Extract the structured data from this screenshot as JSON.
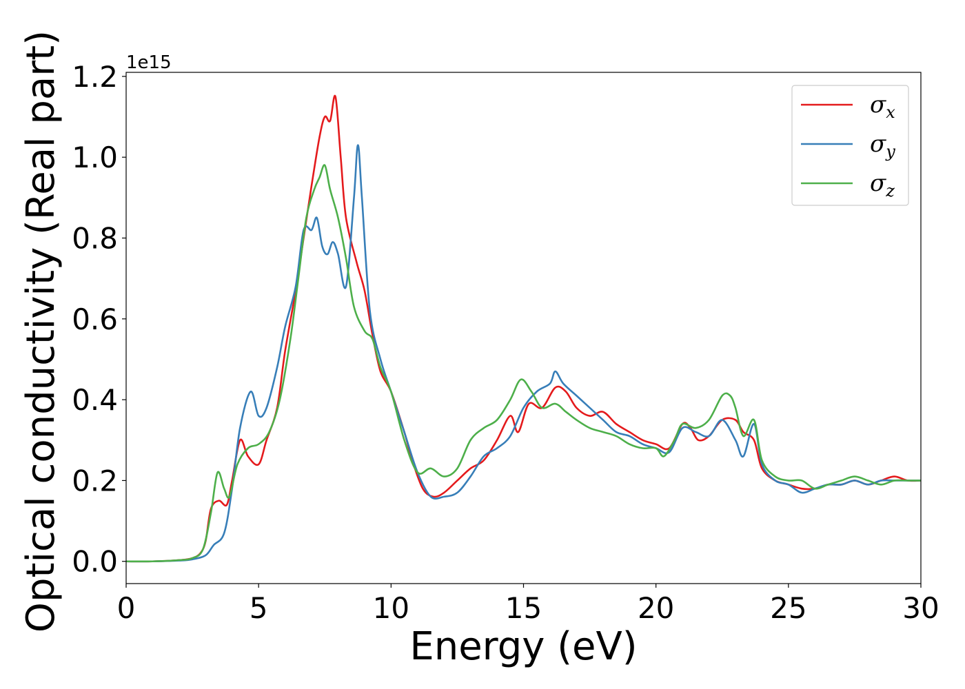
{
  "chart_data": {
    "type": "line",
    "title": "",
    "xlabel": "Energy (eV)",
    "ylabel": "Optical conductivity (Real part)",
    "y_offset_label": "1e15",
    "xlim": [
      0,
      30
    ],
    "ylim": [
      -0.055,
      1.21
    ],
    "x_ticks": [
      0,
      5,
      10,
      15,
      20,
      25,
      30
    ],
    "x_tick_labels": [
      "0",
      "5",
      "10",
      "15",
      "20",
      "25",
      "30"
    ],
    "y_ticks": [
      0.0,
      0.2,
      0.4,
      0.6,
      0.8,
      1.0,
      1.2
    ],
    "y_tick_labels": [
      "0.0",
      "0.2",
      "0.4",
      "0.6",
      "0.8",
      "1.0",
      "1.2"
    ],
    "grid": false,
    "legend_position": "top-right",
    "series": [
      {
        "name": "σx",
        "symbol": "σ",
        "subscript": "x",
        "color": "#e41a1c",
        "points": [
          [
            0,
            0.0
          ],
          [
            1,
            0.0
          ],
          [
            2,
            0.003
          ],
          [
            2.5,
            0.008
          ],
          [
            2.8,
            0.02
          ],
          [
            3.0,
            0.05
          ],
          [
            3.2,
            0.13
          ],
          [
            3.5,
            0.15
          ],
          [
            3.8,
            0.14
          ],
          [
            4.0,
            0.2
          ],
          [
            4.3,
            0.3
          ],
          [
            4.6,
            0.26
          ],
          [
            5.0,
            0.24
          ],
          [
            5.3,
            0.3
          ],
          [
            5.7,
            0.38
          ],
          [
            6.0,
            0.52
          ],
          [
            6.4,
            0.67
          ],
          [
            6.7,
            0.8
          ],
          [
            7.0,
            0.93
          ],
          [
            7.3,
            1.05
          ],
          [
            7.5,
            1.1
          ],
          [
            7.7,
            1.09
          ],
          [
            7.9,
            1.15
          ],
          [
            8.1,
            1.0
          ],
          [
            8.3,
            0.85
          ],
          [
            8.7,
            0.74
          ],
          [
            9.0,
            0.67
          ],
          [
            9.3,
            0.56
          ],
          [
            9.6,
            0.47
          ],
          [
            10.0,
            0.42
          ],
          [
            10.5,
            0.32
          ],
          [
            10.8,
            0.25
          ],
          [
            11.2,
            0.18
          ],
          [
            11.6,
            0.16
          ],
          [
            12.0,
            0.17
          ],
          [
            12.5,
            0.2
          ],
          [
            13.0,
            0.23
          ],
          [
            13.5,
            0.25
          ],
          [
            14.0,
            0.3
          ],
          [
            14.5,
            0.36
          ],
          [
            14.8,
            0.32
          ],
          [
            15.2,
            0.39
          ],
          [
            15.7,
            0.38
          ],
          [
            16.2,
            0.43
          ],
          [
            16.6,
            0.42
          ],
          [
            17.0,
            0.38
          ],
          [
            17.5,
            0.36
          ],
          [
            18.0,
            0.37
          ],
          [
            18.5,
            0.34
          ],
          [
            19.0,
            0.32
          ],
          [
            19.5,
            0.3
          ],
          [
            20.0,
            0.29
          ],
          [
            20.5,
            0.28
          ],
          [
            21.0,
            0.34
          ],
          [
            21.3,
            0.33
          ],
          [
            21.6,
            0.3
          ],
          [
            22.0,
            0.31
          ],
          [
            22.5,
            0.35
          ],
          [
            23.0,
            0.35
          ],
          [
            23.3,
            0.32
          ],
          [
            23.7,
            0.3
          ],
          [
            24.0,
            0.23
          ],
          [
            24.5,
            0.2
          ],
          [
            25.0,
            0.19
          ],
          [
            25.5,
            0.18
          ],
          [
            26.0,
            0.18
          ],
          [
            26.5,
            0.19
          ],
          [
            27.0,
            0.19
          ],
          [
            27.5,
            0.2
          ],
          [
            28.0,
            0.19
          ],
          [
            28.5,
            0.2
          ],
          [
            29.0,
            0.21
          ],
          [
            29.5,
            0.2
          ],
          [
            30.0,
            0.2
          ]
        ]
      },
      {
        "name": "σy",
        "symbol": "σ",
        "subscript": "y",
        "color": "#377eb8",
        "points": [
          [
            0,
            0.0
          ],
          [
            1,
            0.0
          ],
          [
            2,
            0.002
          ],
          [
            2.5,
            0.005
          ],
          [
            3.0,
            0.015
          ],
          [
            3.3,
            0.04
          ],
          [
            3.7,
            0.07
          ],
          [
            4.0,
            0.18
          ],
          [
            4.3,
            0.33
          ],
          [
            4.7,
            0.42
          ],
          [
            5.0,
            0.36
          ],
          [
            5.3,
            0.38
          ],
          [
            5.7,
            0.48
          ],
          [
            6.0,
            0.58
          ],
          [
            6.4,
            0.68
          ],
          [
            6.7,
            0.82
          ],
          [
            7.0,
            0.82
          ],
          [
            7.2,
            0.85
          ],
          [
            7.4,
            0.78
          ],
          [
            7.6,
            0.76
          ],
          [
            7.8,
            0.79
          ],
          [
            8.0,
            0.76
          ],
          [
            8.3,
            0.68
          ],
          [
            8.6,
            0.9
          ],
          [
            8.75,
            1.03
          ],
          [
            8.9,
            0.9
          ],
          [
            9.2,
            0.62
          ],
          [
            9.6,
            0.5
          ],
          [
            10.0,
            0.42
          ],
          [
            10.5,
            0.32
          ],
          [
            11.0,
            0.22
          ],
          [
            11.5,
            0.16
          ],
          [
            12.0,
            0.16
          ],
          [
            12.5,
            0.17
          ],
          [
            13.0,
            0.21
          ],
          [
            13.5,
            0.26
          ],
          [
            14.0,
            0.28
          ],
          [
            14.5,
            0.31
          ],
          [
            15.0,
            0.38
          ],
          [
            15.5,
            0.42
          ],
          [
            16.0,
            0.44
          ],
          [
            16.2,
            0.47
          ],
          [
            16.5,
            0.44
          ],
          [
            17.0,
            0.41
          ],
          [
            17.5,
            0.38
          ],
          [
            18.0,
            0.35
          ],
          [
            18.5,
            0.32
          ],
          [
            19.0,
            0.31
          ],
          [
            19.5,
            0.29
          ],
          [
            20.0,
            0.28
          ],
          [
            20.5,
            0.27
          ],
          [
            21.0,
            0.33
          ],
          [
            21.5,
            0.32
          ],
          [
            22.0,
            0.31
          ],
          [
            22.5,
            0.35
          ],
          [
            23.0,
            0.3
          ],
          [
            23.3,
            0.26
          ],
          [
            23.7,
            0.34
          ],
          [
            24.0,
            0.24
          ],
          [
            24.5,
            0.2
          ],
          [
            25.0,
            0.19
          ],
          [
            25.5,
            0.17
          ],
          [
            26.0,
            0.18
          ],
          [
            26.5,
            0.19
          ],
          [
            27.0,
            0.19
          ],
          [
            27.5,
            0.2
          ],
          [
            28.0,
            0.19
          ],
          [
            28.5,
            0.2
          ],
          [
            29.0,
            0.2
          ],
          [
            29.5,
            0.2
          ],
          [
            30.0,
            0.2
          ]
        ]
      },
      {
        "name": "σz",
        "symbol": "σ",
        "subscript": "z",
        "color": "#4daf4a",
        "points": [
          [
            0,
            0.0
          ],
          [
            1,
            0.0
          ],
          [
            2,
            0.003
          ],
          [
            2.5,
            0.008
          ],
          [
            2.9,
            0.03
          ],
          [
            3.2,
            0.12
          ],
          [
            3.45,
            0.22
          ],
          [
            3.7,
            0.18
          ],
          [
            3.9,
            0.16
          ],
          [
            4.2,
            0.24
          ],
          [
            4.6,
            0.28
          ],
          [
            5.0,
            0.29
          ],
          [
            5.4,
            0.32
          ],
          [
            5.8,
            0.4
          ],
          [
            6.2,
            0.55
          ],
          [
            6.5,
            0.7
          ],
          [
            6.8,
            0.85
          ],
          [
            7.1,
            0.92
          ],
          [
            7.3,
            0.95
          ],
          [
            7.5,
            0.98
          ],
          [
            7.7,
            0.92
          ],
          [
            8.0,
            0.85
          ],
          [
            8.3,
            0.75
          ],
          [
            8.6,
            0.63
          ],
          [
            9.0,
            0.57
          ],
          [
            9.3,
            0.55
          ],
          [
            9.6,
            0.48
          ],
          [
            10.0,
            0.42
          ],
          [
            10.5,
            0.3
          ],
          [
            11.0,
            0.22
          ],
          [
            11.5,
            0.23
          ],
          [
            12.0,
            0.21
          ],
          [
            12.5,
            0.23
          ],
          [
            13.0,
            0.3
          ],
          [
            13.5,
            0.33
          ],
          [
            14.0,
            0.35
          ],
          [
            14.5,
            0.4
          ],
          [
            14.9,
            0.45
          ],
          [
            15.3,
            0.42
          ],
          [
            15.7,
            0.38
          ],
          [
            16.2,
            0.39
          ],
          [
            16.6,
            0.37
          ],
          [
            17.0,
            0.35
          ],
          [
            17.5,
            0.33
          ],
          [
            18.0,
            0.32
          ],
          [
            18.5,
            0.31
          ],
          [
            19.0,
            0.29
          ],
          [
            19.5,
            0.28
          ],
          [
            20.0,
            0.28
          ],
          [
            20.3,
            0.26
          ],
          [
            20.7,
            0.3
          ],
          [
            21.0,
            0.34
          ],
          [
            21.5,
            0.33
          ],
          [
            22.0,
            0.35
          ],
          [
            22.5,
            0.41
          ],
          [
            22.8,
            0.41
          ],
          [
            23.0,
            0.38
          ],
          [
            23.3,
            0.31
          ],
          [
            23.7,
            0.35
          ],
          [
            24.0,
            0.25
          ],
          [
            24.5,
            0.21
          ],
          [
            25.0,
            0.2
          ],
          [
            25.5,
            0.2
          ],
          [
            26.0,
            0.18
          ],
          [
            26.5,
            0.19
          ],
          [
            27.0,
            0.2
          ],
          [
            27.5,
            0.21
          ],
          [
            28.0,
            0.2
          ],
          [
            28.5,
            0.19
          ],
          [
            29.0,
            0.2
          ],
          [
            29.5,
            0.2
          ],
          [
            30.0,
            0.2
          ]
        ]
      }
    ]
  }
}
